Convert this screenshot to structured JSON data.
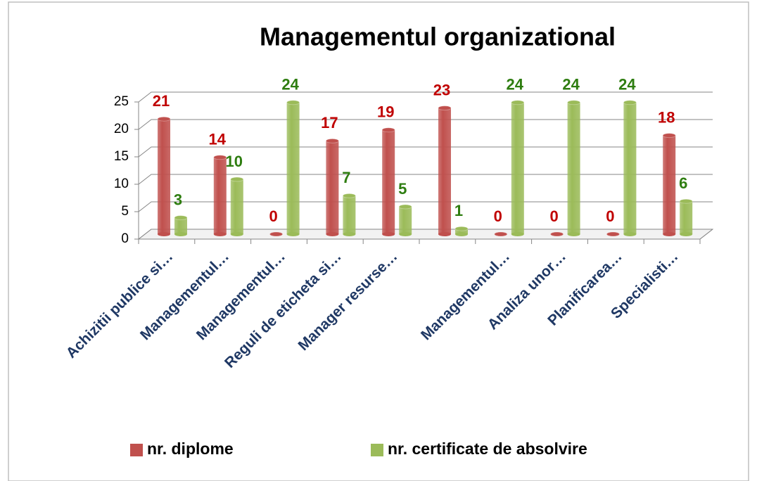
{
  "chart_data": {
    "type": "bar3d",
    "title": "Managementul organizational",
    "categories": [
      "Achizitii publice si…",
      "Managementul…",
      "Managementul…",
      "Reguli de eticheta si…",
      "Manager resurse…",
      null,
      "Managementul…",
      "Analiza unor…",
      "Planificarea…",
      "Specialisti…"
    ],
    "series": [
      {
        "name": "nr. diplome",
        "color": "#c0504d",
        "label_color": "#c00000",
        "values": [
          21,
          14,
          0,
          17,
          19,
          23,
          0,
          0,
          0,
          18
        ]
      },
      {
        "name": "nr. certificate de absolvire",
        "color": "#9bbb59",
        "label_color": "#2e7d10",
        "values": [
          3,
          10,
          24,
          7,
          5,
          1,
          24,
          24,
          24,
          6
        ]
      }
    ],
    "ylim": [
      0,
      25
    ],
    "yticks": [
      0,
      5,
      10,
      15,
      20,
      25
    ],
    "grid": true,
    "legend": "bottom"
  }
}
